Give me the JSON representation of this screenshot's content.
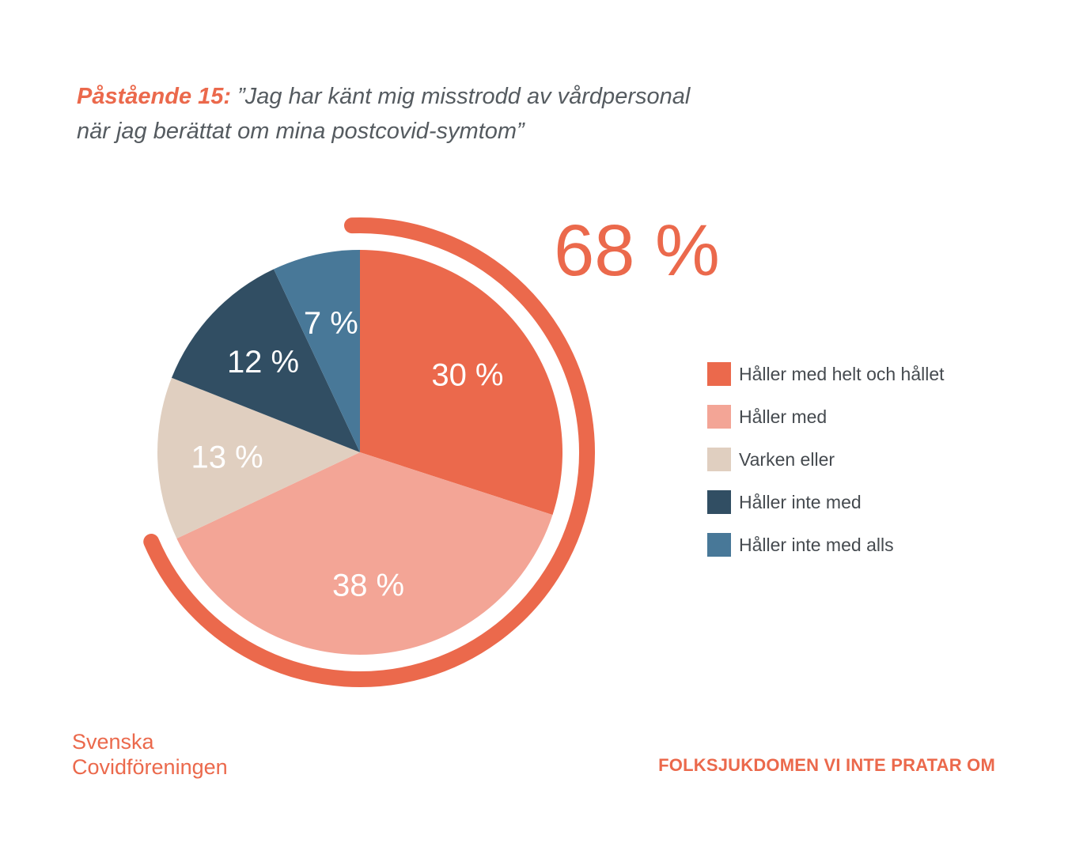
{
  "title": {
    "lead": "Påstående 15:",
    "line1": " ”Jag har känt mig misstrodd av vårdpersonal",
    "line2": "när jag berättat om mina postcovid-symtom”"
  },
  "chart_data": {
    "type": "pie",
    "categories": [
      "Håller med helt och hållet",
      "Håller med",
      "Varken eller",
      "Håller inte med",
      "Håller inte med alls"
    ],
    "values": [
      30,
      38,
      13,
      12,
      7
    ],
    "value_labels": [
      "30 %",
      "38 %",
      "13 %",
      "12 %",
      "7 %"
    ],
    "colors": [
      "#eb694c",
      "#f3a596",
      "#e0cfc0",
      "#314e63",
      "#487898"
    ],
    "highlight": {
      "label": "68 %",
      "value": 68,
      "color": "#eb694c"
    },
    "legend_position": "right"
  },
  "brand": {
    "line1": "Svenska",
    "line2": "Covidföreningen"
  },
  "footer": "FOLKSJUKDOMEN VI INTE PRATAR OM"
}
